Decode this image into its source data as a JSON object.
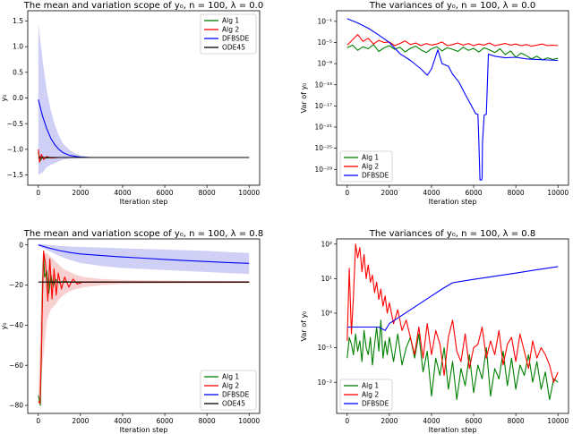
{
  "colors": {
    "alg1": "#008000",
    "alg2": "#ff0000",
    "dfbsde": "#0000ff",
    "ode45": "#000000",
    "band_blue": "#c8c8f5",
    "band_red": "#f8c8c8"
  },
  "chart_data": [
    {
      "type": "line",
      "title": "The mean and variation scope of y₀, n = 100, λ = 0.0",
      "xlabel": "Iteration step",
      "ylabel": "y₀",
      "xlim": [
        -500,
        10500
      ],
      "ylim": [
        -1.7,
        1.7
      ],
      "yscale": "linear",
      "xticks": [
        0,
        2000,
        4000,
        6000,
        8000,
        10000
      ],
      "yticks": [
        -1.5,
        -1.0,
        -0.5,
        0.0,
        0.5,
        1.0,
        1.5
      ],
      "ytick_labels": [
        "−1.5",
        "−1.0",
        "−0.5",
        "0.0",
        "0.5",
        "1.0",
        "1.5"
      ],
      "legend": {
        "position": "top-right",
        "entries": [
          "Alg 1",
          "Alg 2",
          "DFBSDE",
          "ODE45"
        ]
      },
      "series": [
        {
          "name": "Alg 1",
          "color_key": "alg1",
          "x": [
            0,
            100,
            200,
            400,
            700,
            1000,
            10000
          ],
          "y": [
            -1.05,
            -1.22,
            -1.15,
            -1.17,
            -1.16,
            -1.16,
            -1.16
          ]
        },
        {
          "name": "Alg 2",
          "color_key": "alg2",
          "x": [
            0,
            60,
            150,
            250,
            400,
            600,
            1000,
            10000
          ],
          "y": [
            -1.0,
            -1.25,
            -1.1,
            -1.2,
            -1.14,
            -1.17,
            -1.16,
            -1.16
          ]
        },
        {
          "name": "DFBSDE",
          "color_key": "dfbsde",
          "x": [
            0,
            200,
            400,
            600,
            800,
            1000,
            1200,
            1500,
            1800,
            2000,
            2500,
            10000
          ],
          "y": [
            -0.03,
            -0.35,
            -0.6,
            -0.79,
            -0.92,
            -1.01,
            -1.07,
            -1.12,
            -1.14,
            -1.15,
            -1.16,
            -1.16
          ]
        },
        {
          "name": "ODE45",
          "color_key": "ode45",
          "x": [
            0,
            10000
          ],
          "y": [
            -1.16,
            -1.16
          ]
        }
      ],
      "band": {
        "series": "DFBSDE",
        "color_key": "band_blue",
        "x": [
          0,
          200,
          400,
          600,
          800,
          1000,
          1200,
          1500,
          1800,
          2100,
          2500
        ],
        "low": [
          -1.5,
          -1.45,
          -1.35,
          -1.3,
          -1.27,
          -1.23,
          -1.2,
          -1.18,
          -1.17,
          -1.165,
          -1.16
        ],
        "high": [
          1.45,
          0.75,
          0.15,
          -0.25,
          -0.55,
          -0.75,
          -0.9,
          -1.02,
          -1.09,
          -1.13,
          -1.16
        ]
      }
    },
    {
      "type": "line",
      "title": "The variances of y₀, n = 100, λ = 0.0",
      "xlabel": "Iteration step",
      "ylabel": "Var of y₀",
      "xlim": [
        -500,
        10500
      ],
      "yscale": "log",
      "ylim_exp": [
        -32,
        1
      ],
      "xticks": [
        0,
        2000,
        4000,
        6000,
        8000,
        10000
      ],
      "ytick_exps": [
        -29,
        -25,
        -21,
        -17,
        -13,
        -9,
        -5,
        -1
      ],
      "ytick_labels": [
        "10⁻²⁹",
        "10⁻²⁵",
        "10⁻²¹",
        "10⁻¹⁷",
        "10⁻¹³",
        "10⁻⁹",
        "10⁻⁵",
        "10⁻¹"
      ],
      "legend": {
        "position": "bottom-left",
        "entries": [
          "Alg 1",
          "Alg 2",
          "DFBSDE"
        ]
      },
      "series": [
        {
          "name": "Alg 1",
          "color_key": "alg1",
          "x": [
            0,
            250,
            500,
            750,
            1000,
            1250,
            1500,
            1750,
            2000,
            2250,
            2500,
            2750,
            3000,
            3250,
            3500,
            3750,
            4000,
            4250,
            4500,
            4750,
            5000,
            5250,
            5500,
            5750,
            6000,
            6250,
            6500,
            6750,
            7000,
            7250,
            7500,
            7750,
            8000,
            8250,
            8500,
            8750,
            9000,
            9250,
            9500,
            9750,
            10000
          ],
          "y_exp": [
            -6,
            -5.5,
            -6.5,
            -5.8,
            -6.2,
            -5.4,
            -6.7,
            -6.0,
            -5.6,
            -6.3,
            -5.9,
            -6.8,
            -6.1,
            -5.7,
            -6.4,
            -6.9,
            -6.2,
            -5.8,
            -6.6,
            -6.0,
            -6.3,
            -6.7,
            -5.9,
            -6.5,
            -6.1,
            -6.8,
            -6.0,
            -6.4,
            -6.9,
            -6.2,
            -7.3,
            -6.6,
            -7.8,
            -7.0,
            -7.5,
            -8.1,
            -7.6,
            -8.3,
            -7.9,
            -8.2,
            -8.0
          ]
        },
        {
          "name": "Alg 2",
          "color_key": "alg2",
          "x": [
            0,
            250,
            500,
            750,
            1000,
            1250,
            1500,
            1750,
            2000,
            2250,
            2500,
            2750,
            3000,
            3250,
            3500,
            3750,
            4000,
            4250,
            4500,
            4750,
            5000,
            5250,
            5500,
            5750,
            6000,
            6250,
            6500,
            6750,
            7000,
            7250,
            7500,
            7750,
            8000,
            8250,
            8500,
            8750,
            9000,
            9250,
            9500,
            9750,
            10000
          ],
          "y_exp": [
            -5.5,
            -4.5,
            -3.5,
            -4.8,
            -4.2,
            -5.3,
            -4.6,
            -5.0,
            -4.9,
            -5.6,
            -5.2,
            -4.7,
            -5.4,
            -5.1,
            -5.6,
            -5.2,
            -5.5,
            -5.3,
            -4.9,
            -5.6,
            -5.4,
            -5.1,
            -5.5,
            -5.2,
            -5.6,
            -5.3,
            -5.5,
            -5.1,
            -5.6,
            -5.4,
            -5.2,
            -5.5,
            -5.3,
            -5.6,
            -5.4,
            -5.7,
            -5.5,
            -5.3,
            -5.6,
            -5.5,
            -5.6
          ]
        },
        {
          "name": "DFBSDE",
          "color_key": "dfbsde",
          "x": [
            0,
            500,
            1000,
            1500,
            2000,
            2500,
            3000,
            3500,
            3800,
            4000,
            4300,
            4500,
            4800,
            5000,
            5300,
            5600,
            5900,
            6100,
            6200,
            6250,
            6300,
            6320,
            6380,
            6400,
            6420,
            6500,
            6600,
            6700,
            7000,
            7500,
            8000,
            8500,
            9000,
            9500,
            10000
          ],
          "y_exp": [
            -0.5,
            -1.3,
            -2.3,
            -3.6,
            -5.0,
            -7.1,
            -8.4,
            -10.0,
            -11.2,
            -10.0,
            -6.4,
            -9.0,
            -9.5,
            -11.0,
            -12.5,
            -14.8,
            -17.0,
            -18.5,
            -18.6,
            -24.0,
            -31.0,
            -31.0,
            -31.0,
            -30.5,
            -24.0,
            -18.7,
            -18.6,
            -7.2,
            -7.6,
            -7.9,
            -7.8,
            -8.1,
            -8.2,
            -8.3,
            -8.4
          ]
        }
      ]
    },
    {
      "type": "line",
      "title": "The mean and variation scope of y₀, n = 100, λ = 0.8",
      "xlabel": "Iteration step",
      "ylabel": "y₀",
      "xlim": [
        -500,
        10500
      ],
      "ylim": [
        -84,
        3
      ],
      "yscale": "linear",
      "xticks": [
        0,
        2000,
        4000,
        6000,
        8000,
        10000
      ],
      "yticks": [
        -80,
        -60,
        -40,
        -20,
        0
      ],
      "ytick_labels": [
        "−80",
        "−60",
        "−40",
        "−20",
        "0"
      ],
      "legend": {
        "position": "bottom-right",
        "entries": [
          "Alg 1",
          "Alg 2",
          "DFBSDE",
          "ODE45"
        ]
      },
      "series": [
        {
          "name": "Alg 1",
          "color_key": "alg1",
          "x": [
            0,
            100,
            150,
            200,
            250,
            300,
            400,
            500,
            600,
            700,
            800,
            1000,
            1200,
            1400,
            10000
          ],
          "y": [
            -75,
            -80,
            -55,
            -20,
            -5,
            -16,
            -13,
            -24,
            -15,
            -21,
            -17,
            -19,
            -18,
            -18.5,
            -18.5
          ]
        },
        {
          "name": "Alg 2",
          "color_key": "alg2",
          "x": [
            0,
            80,
            150,
            200,
            250,
            350,
            450,
            550,
            650,
            750,
            850,
            950,
            1100,
            1250,
            1450,
            1650,
            1850,
            2100,
            10000
          ],
          "y": [
            -78,
            -79,
            -52,
            -25,
            -3,
            -10,
            -28,
            -7,
            -27,
            -12,
            -25,
            -14,
            -22,
            -16,
            -21,
            -17,
            -19.5,
            -18.5,
            -18.5
          ]
        },
        {
          "name": "DFBSDE",
          "color_key": "dfbsde",
          "x": [
            0,
            500,
            1000,
            1500,
            2000,
            3000,
            4000,
            5000,
            6000,
            7000,
            8000,
            9000,
            10000
          ],
          "y": [
            0,
            -1.5,
            -2.8,
            -3.8,
            -4.5,
            -5.3,
            -6.0,
            -6.6,
            -7.2,
            -7.8,
            -8.3,
            -8.8,
            -9.2
          ]
        },
        {
          "name": "ODE45",
          "color_key": "ode45",
          "x": [
            0,
            10000
          ],
          "y": [
            -18.5,
            -18.5
          ]
        }
      ],
      "band": {
        "series": "DFBSDE",
        "color_key": "band_blue",
        "x": [
          0,
          500,
          1000,
          1500,
          2000,
          3000,
          4000,
          5000,
          6000,
          7000,
          8000,
          9000,
          10000
        ],
        "low": [
          -0.5,
          -3,
          -5.5,
          -7.5,
          -9,
          -10.5,
          -11.5,
          -12,
          -12.5,
          -13,
          -13.5,
          -14,
          -14.5
        ],
        "high": [
          0.5,
          0,
          -0.5,
          -0.8,
          -1.0,
          -1.3,
          -1.7,
          -2.0,
          -2.3,
          -2.6,
          -3.0,
          -3.5,
          -4.0
        ]
      },
      "band2": {
        "series": "Alg 2",
        "color_key": "band_red",
        "x": [
          0,
          200,
          400,
          600,
          800,
          1000,
          1200,
          1500,
          1800,
          2200,
          2600,
          3000,
          4000,
          6000,
          10000
        ],
        "low": [
          -80,
          -60,
          -38,
          -32,
          -30,
          -27,
          -25,
          -23,
          -22,
          -21,
          -20.5,
          -20,
          -19.5,
          -19.2,
          -19
        ],
        "high": [
          -76,
          -5,
          -4,
          -6,
          -8,
          -10,
          -12,
          -13.5,
          -15,
          -16,
          -16.5,
          -17,
          -17.5,
          -17.8,
          -18
        ]
      }
    },
    {
      "type": "line",
      "title": "The variances of y₀, n = 100, λ = 0.8",
      "xlabel": "Iteration step",
      "ylabel": "Var of y₀",
      "xlim": [
        -500,
        10500
      ],
      "yscale": "log",
      "ylim_exp": [
        -2.9,
        2.15
      ],
      "xticks": [
        0,
        2000,
        4000,
        6000,
        8000,
        10000
      ],
      "ytick_exps": [
        -2,
        -1,
        0,
        1,
        2
      ],
      "ytick_labels": [
        "10⁻²",
        "10⁻¹",
        "10⁰",
        "10¹",
        "10²"
      ],
      "legend": {
        "position": "bottom-left",
        "entries": [
          "Alg 1",
          "Alg 2",
          "DFBSDE"
        ]
      },
      "series": [
        {
          "name": "Alg 1",
          "color_key": "alg1",
          "x": [
            0,
            100,
            200,
            300,
            400,
            500,
            600,
            700,
            800,
            900,
            1000,
            1100,
            1200,
            1300,
            1400,
            1500,
            1600,
            1700,
            1800,
            1900,
            2000,
            2200,
            2400,
            2600,
            2800,
            3000,
            3200,
            3400,
            3600,
            3800,
            4000,
            4200,
            4400,
            4600,
            4800,
            5000,
            5200,
            5400,
            5600,
            5800,
            6000,
            6200,
            6400,
            6600,
            6800,
            7000,
            7200,
            7400,
            7600,
            7800,
            8000,
            8200,
            8400,
            8600,
            8800,
            9000,
            9200,
            9400,
            9600,
            9800,
            10000
          ],
          "y_exp": [
            -1.3,
            -0.7,
            -0.9,
            -1.2,
            -0.6,
            -1.1,
            -0.8,
            -1.4,
            -0.5,
            -1.0,
            -1.2,
            -0.7,
            -1.5,
            -0.9,
            -0.4,
            -1.1,
            -0.2,
            -1.3,
            -0.8,
            -1.2,
            -0.7,
            -1.4,
            -0.6,
            -1.5,
            -1.0,
            -0.7,
            -1.3,
            -0.6,
            -1.7,
            -1.1,
            -2.4,
            -1.3,
            -1.8,
            -1.0,
            -2.2,
            -1.4,
            -2.5,
            -1.6,
            -2.1,
            -1.2,
            -2.3,
            -1.5,
            -1.9,
            -1.0,
            -2.4,
            -1.6,
            -1.9,
            -1.1,
            -2.1,
            -1.3,
            -2.2,
            -1.5,
            -1.8,
            -1.2,
            -2.0,
            -1.4,
            -2.2,
            -1.7,
            -2.5,
            -1.9,
            -2.0
          ]
        },
        {
          "name": "Alg 2",
          "color_key": "alg2",
          "x": [
            0,
            100,
            200,
            300,
            400,
            500,
            600,
            700,
            800,
            900,
            1000,
            1100,
            1200,
            1300,
            1400,
            1500,
            1600,
            1700,
            1800,
            1900,
            2000,
            2200,
            2400,
            2600,
            2800,
            3000,
            3200,
            3400,
            3600,
            3800,
            4000,
            4200,
            4400,
            4600,
            4800,
            5000,
            5200,
            5400,
            5600,
            5800,
            6000,
            6200,
            6400,
            6600,
            6800,
            7000,
            7200,
            7400,
            7600,
            7800,
            8000,
            8200,
            8400,
            8600,
            8800,
            9000,
            9200,
            9400,
            9600,
            9800,
            10000
          ],
          "y_exp": [
            -0.8,
            1.3,
            -0.6,
            0.5,
            2.0,
            1.6,
            1.9,
            1.2,
            1.7,
            1.0,
            1.4,
            0.9,
            1.1,
            0.6,
            0.9,
            0.4,
            0.7,
            0.2,
            0.5,
            0.0,
            0.3,
            -0.3,
            0.1,
            -0.5,
            -0.2,
            -0.7,
            -1.2,
            -0.4,
            -1.3,
            -0.3,
            -1.2,
            -0.5,
            -0.9,
            -1.8,
            -0.7,
            -0.2,
            -1.1,
            -1.4,
            -0.6,
            -1.6,
            -1.0,
            -0.9,
            -0.4,
            -1.3,
            -0.8,
            -1.2,
            -0.5,
            -1.5,
            -0.9,
            -0.7,
            -1.4,
            -0.6,
            -1.1,
            -1.6,
            -0.8,
            -1.3,
            -1.0,
            -1.2,
            -1.5,
            -2.0,
            -1.7
          ]
        },
        {
          "name": "DFBSDE",
          "color_key": "dfbsde",
          "x": [
            0,
            500,
            1000,
            1500,
            1800,
            2000,
            2500,
            3000,
            3500,
            4000,
            4500,
            5000,
            6000,
            7000,
            8000,
            9000,
            10000
          ],
          "y_exp": [
            -0.4,
            -0.4,
            -0.4,
            -0.4,
            -0.5,
            -0.3,
            -0.1,
            0.1,
            0.3,
            0.5,
            0.7,
            0.88,
            0.98,
            1.07,
            1.16,
            1.26,
            1.35
          ]
        }
      ]
    }
  ]
}
